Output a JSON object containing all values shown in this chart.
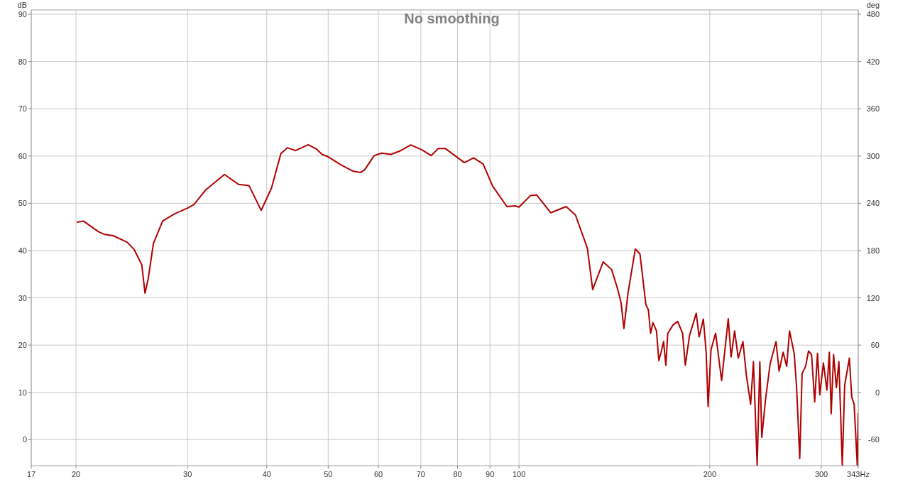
{
  "chart_data": {
    "type": "line",
    "title": "No smoothing",
    "ylabel": "dB",
    "y2label": "deg",
    "log": "x",
    "grid": true,
    "line_style": "solid",
    "marker": "none",
    "xlim": [
      17,
      343
    ],
    "xticks": [
      17,
      20,
      30,
      40,
      50,
      60,
      70,
      80,
      90,
      100,
      200,
      300,
      {
        "value": 343,
        "label": "343Hz"
      }
    ],
    "ylim": [
      -5.5,
      90.9
    ],
    "yticks": [
      0,
      10,
      20,
      30,
      40,
      50,
      60,
      70,
      80,
      90
    ],
    "y2lim": [
      -93,
      485.4
    ],
    "y2ticks": [
      -60,
      0,
      60,
      120,
      180,
      240,
      300,
      360,
      420,
      480
    ],
    "series": [
      {
        "color": "#b00000",
        "x": [
          20.1,
          20.55,
          21.7,
          22.2,
          22.9,
          24.1,
          24.7,
          25.4,
          25.7,
          26.0,
          26.5,
          27.4,
          28.6,
          30,
          30.7,
          32.0,
          34.3,
          36.1,
          37.5,
          39.2,
          40.7,
          42.1,
          43.1,
          44.4,
          46.5,
          47.9,
          48.9,
          50,
          52.4,
          54.7,
          56.2,
          57.1,
          59.1,
          60.7,
          62.8,
          65.0,
          67.5,
          70.2,
          72.7,
          74.6,
          76.5,
          79.2,
          82.0,
          84.8,
          87.8,
          90.9,
          95.7,
          98.6,
          100,
          104.3,
          106.6,
          112.2,
          118.7,
          122.8,
          128.2,
          130.7,
          135.8,
          140,
          143,
          144.9,
          146.4,
          148.6,
          152.6,
          155.2,
          158.6,
          160.0,
          161.3,
          162.7,
          164.8,
          166.2,
          167.6,
          169.1,
          170.5,
          171.7,
          175.0,
          178.0,
          181.2,
          183.0,
          185.8,
          190.4,
          192.4,
          195.4,
          197.4,
          198.8,
          200.9,
          204.3,
          208.8,
          213.9,
          216.1,
          218.9,
          221.8,
          225.6,
          228.5,
          232,
          234.4,
          237.6,
          239.9,
          241.6,
          244.9,
          249.0,
          254.4,
          257.3,
          261.1,
          264.5,
          267.2,
          271.8,
          274.2,
          277.3,
          279.7,
          283.3,
          286.3,
          289.5,
          292.8,
          295.8,
          298.3,
          302.2,
          306.1,
          308.8,
          310.9,
          313.6,
          316.8,
          319.7,
          323.7,
          326.5,
          332.1,
          335,
          337.9,
          341.8,
          343
        ],
        "values": [
          46.0,
          46.25,
          44.0,
          43.4,
          43.15,
          41.75,
          40.25,
          37,
          31,
          34,
          41.5,
          46.25,
          47.75,
          49,
          49.75,
          52.75,
          56.1,
          54,
          53.75,
          48.5,
          53.25,
          60.5,
          61.75,
          61.15,
          62.4,
          61.5,
          60.35,
          59.85,
          58.1,
          56.8,
          56.5,
          57.1,
          60.1,
          60.6,
          60.35,
          61.1,
          62.35,
          61.35,
          60.1,
          61.6,
          61.6,
          60.1,
          58.6,
          59.6,
          58.3,
          53.6,
          49.3,
          49.45,
          49.2,
          51.65,
          51.8,
          48.0,
          49.3,
          47.5,
          40.5,
          31.75,
          37.6,
          36,
          32,
          29,
          23.5,
          31,
          40.35,
          39.25,
          28.5,
          27.5,
          22.5,
          24.75,
          23,
          16.75,
          18.5,
          20.75,
          15.75,
          22.5,
          24.25,
          25,
          22.5,
          15.75,
          22,
          26.75,
          21.75,
          25.5,
          18.5,
          7,
          19,
          22.5,
          12.5,
          25.6,
          17.5,
          23,
          17.25,
          20.75,
          13.5,
          7.5,
          16.5,
          -5.4,
          16.5,
          0.5,
          8.5,
          16,
          20.75,
          14.5,
          18.5,
          15.5,
          23,
          18.25,
          11,
          -4,
          14,
          15.5,
          18.75,
          18,
          8,
          18.25,
          9.5,
          16.25,
          10.5,
          18.5,
          5.5,
          18,
          11,
          16.5,
          -5.4,
          11.5,
          17.25,
          9,
          7.5,
          -5.4,
          5.5
        ]
      }
    ]
  }
}
